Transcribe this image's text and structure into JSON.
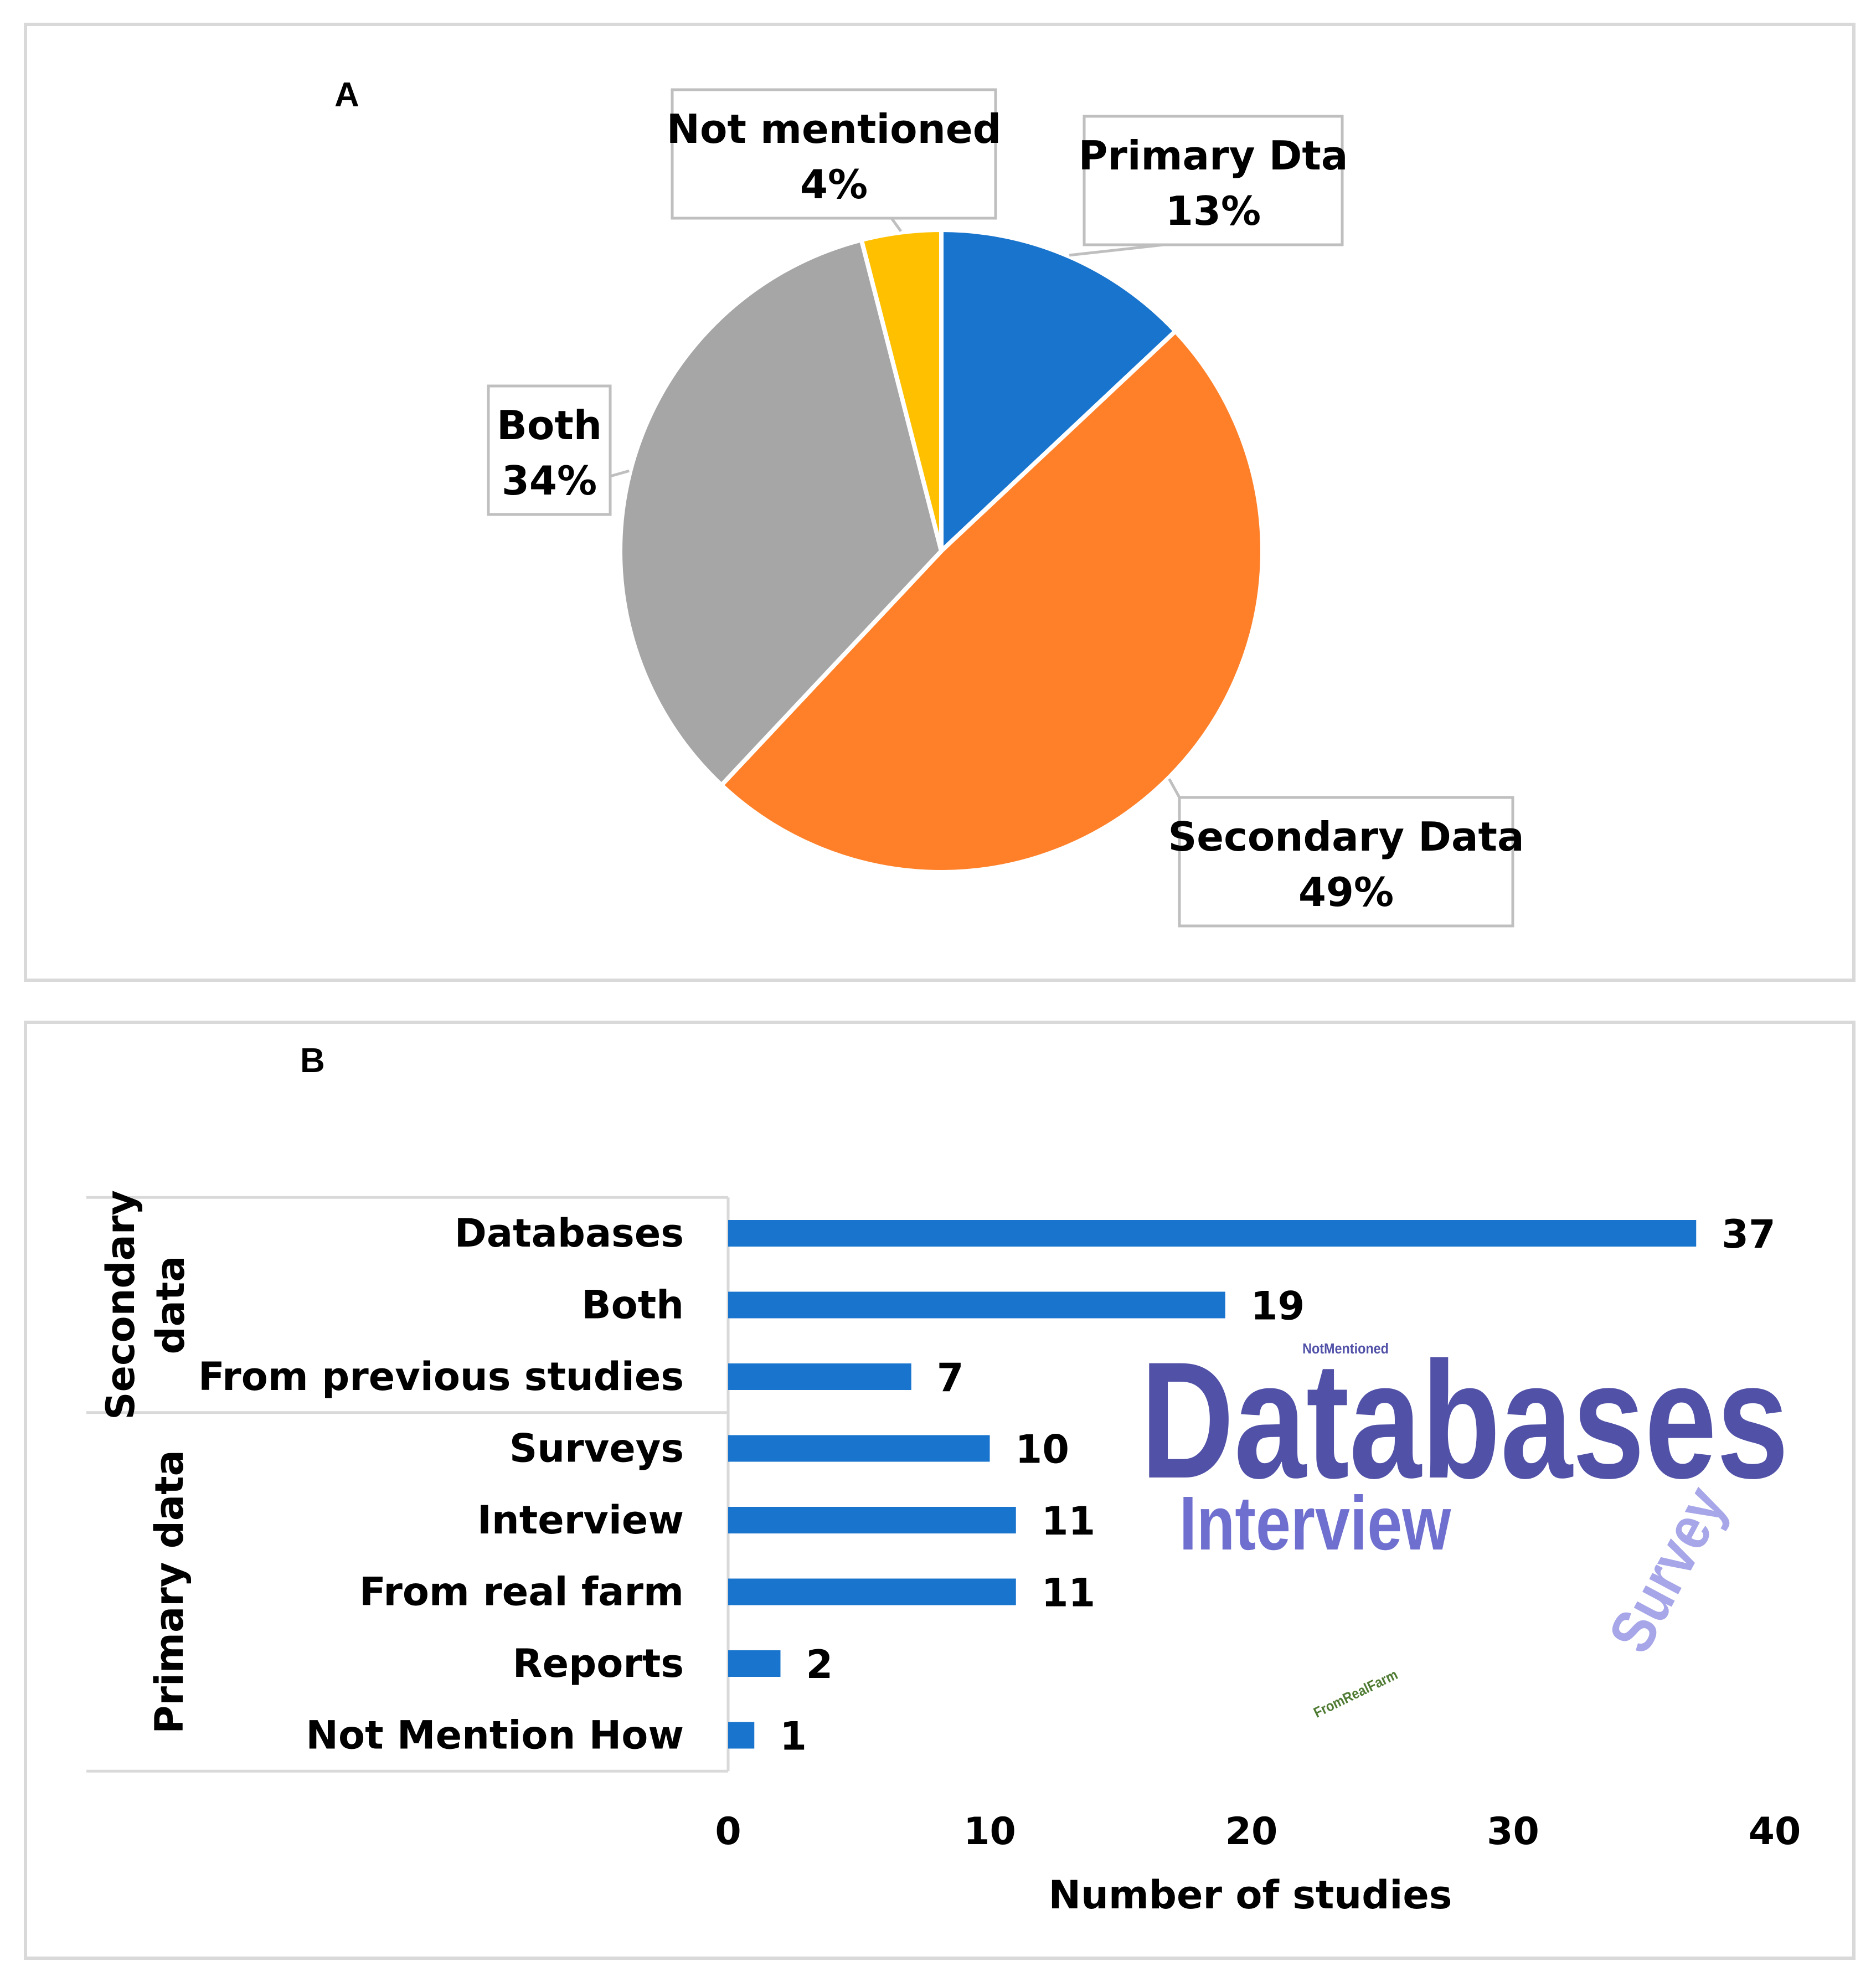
{
  "chart_data": [
    {
      "panel": "A",
      "type": "pie",
      "slices": [
        {
          "label": "Primary Dta",
          "value": 13,
          "value_label": "13%",
          "color": "#1874CD"
        },
        {
          "label": "Secondary Data",
          "value": 49,
          "value_label": "49%",
          "color": "#FF8029"
        },
        {
          "label": "Both",
          "value": 34,
          "value_label": "34%",
          "color": "#A6A6A6"
        },
        {
          "label": "Not mentioned",
          "value": 4,
          "value_label": "4%",
          "color": "#FFC000"
        }
      ]
    },
    {
      "panel": "B",
      "type": "bar",
      "orientation": "horizontal",
      "bar_color": "#1874CD",
      "groups": [
        {
          "name": "Secondary data",
          "label_lines": [
            "Secondary",
            "data"
          ],
          "categories": [
            "Databases",
            "Both",
            "From previous studies"
          ],
          "values": [
            37,
            19,
            7
          ]
        },
        {
          "name": "Primary data",
          "label_lines": [
            "Primary data"
          ],
          "categories": [
            "Surveys",
            "Interview",
            "From real farm",
            "Reports",
            "Not Mention How"
          ],
          "values": [
            10,
            11,
            11,
            2,
            1
          ]
        }
      ],
      "xlim": [
        0,
        40
      ],
      "xticks": [
        0,
        10,
        20,
        30,
        40
      ],
      "xtick_labels": [
        "0",
        "10",
        "20",
        "30",
        "40"
      ],
      "xlabel": "Number of studies",
      "grid": false
    }
  ],
  "word_cloud": [
    {
      "word": "Databases",
      "color": "#5151A8"
    },
    {
      "word": "Interview",
      "color": "#6F6FD0"
    },
    {
      "word": "Survey",
      "color": "#A6A6E8"
    },
    {
      "word": "NotMentioned",
      "color": "#5151A8"
    },
    {
      "word": "FromRealFarm",
      "color": "#4E7A32"
    }
  ]
}
